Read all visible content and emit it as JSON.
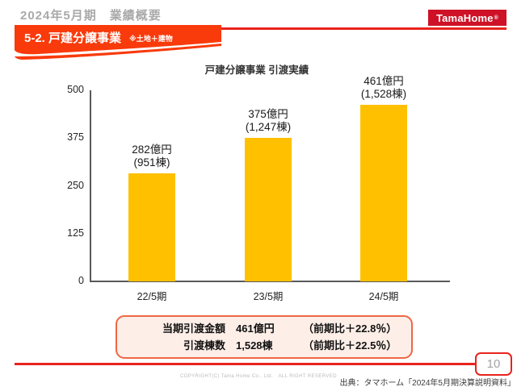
{
  "header": {
    "title": "2024年5月期　業績概要",
    "logo_text": "TamaHome",
    "logo_reg": "®"
  },
  "banner": {
    "title": "5-2. 戸建分譲事業",
    "note": "※土地＋建物"
  },
  "chart_data": {
    "type": "bar",
    "title": "戸建分譲事業 引渡実績",
    "categories": [
      "22/5期",
      "23/5期",
      "24/5期"
    ],
    "values": [
      282,
      375,
      461
    ],
    "units_delivered": [
      951,
      1247,
      1528
    ],
    "bar_labels": [
      [
        "282億円",
        "(951棟)"
      ],
      [
        "375億円",
        "(1,247棟)"
      ],
      [
        "461億円",
        "(1,528棟)"
      ]
    ],
    "ylim": [
      0,
      500
    ],
    "yticks": [
      0,
      125,
      250,
      375,
      500
    ],
    "xlabel": "",
    "ylabel": "",
    "grid": false,
    "legend": false,
    "bar_color": "#ffc000"
  },
  "summary": {
    "rows": [
      {
        "label": "当期引渡金額",
        "value": "461億円",
        "comparison": "（前期比＋22.8％）"
      },
      {
        "label": "引渡棟数",
        "value": "1,528棟",
        "comparison": "（前期比＋22.5％）"
      }
    ]
  },
  "footer": {
    "copyright": "COPYRIGHT(C) Tama Home Co., Ltd.　ALL RIGHT RESERVED",
    "page_number": "10",
    "source": "出典：タマホーム「2024年5月期決算説明資料」"
  },
  "colors": {
    "banner_red": "#f93a0b",
    "rule_red": "#e8231d",
    "logo_red": "#ce1126",
    "bar": "#ffc000",
    "summary_border": "#ee6744",
    "summary_bg": "#fdeee8",
    "header_gray": "#a9a9a9"
  }
}
